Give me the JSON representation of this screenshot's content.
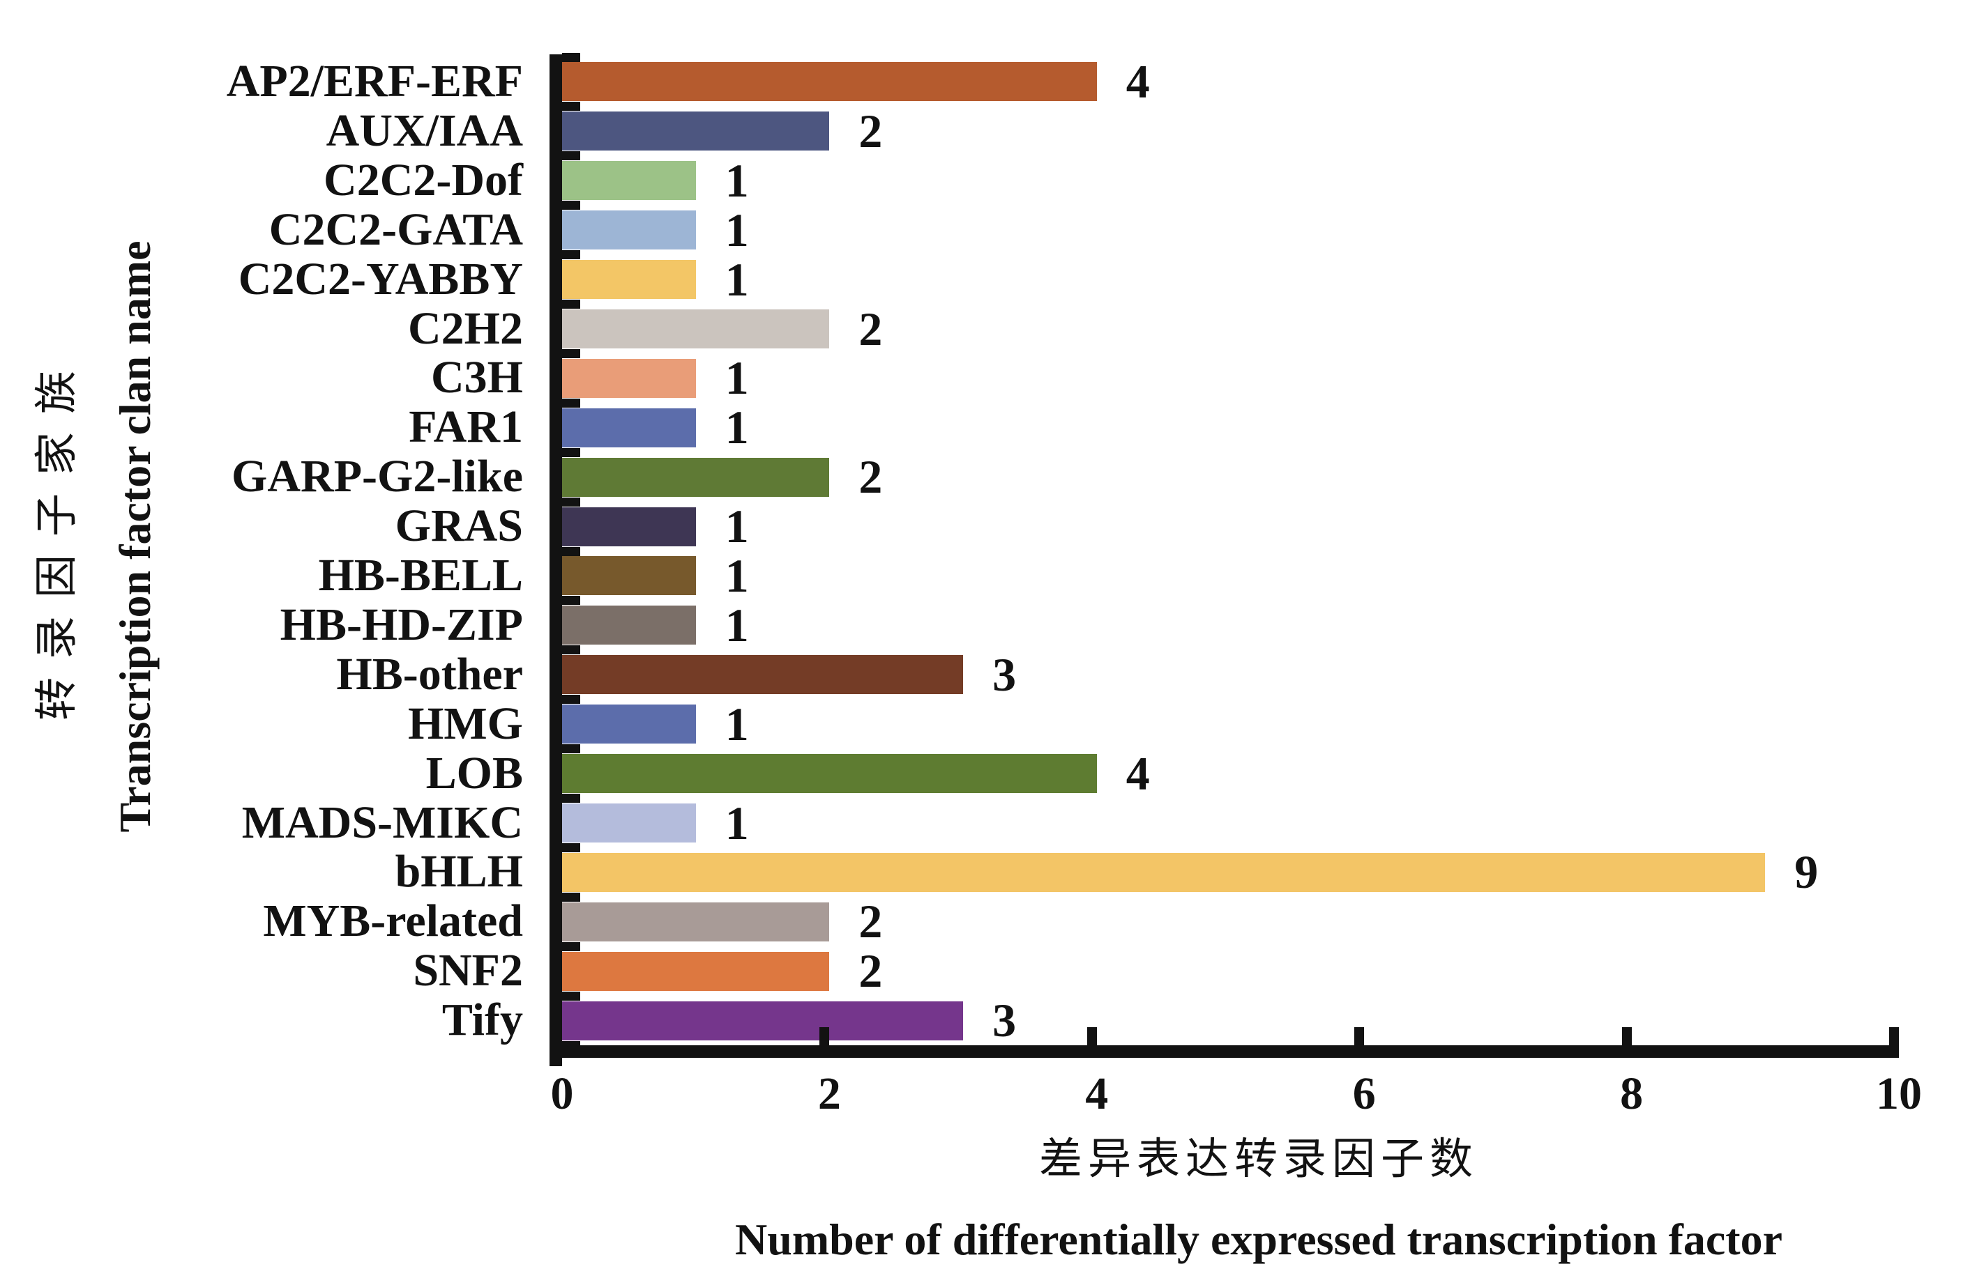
{
  "figure": {
    "background": "#ffffff",
    "axis_color": "#121212",
    "text_color": "#121212"
  },
  "chart_data": {
    "type": "bar",
    "orientation": "horizontal",
    "title": "",
    "xlabel_zh": "差异表达转录因子数",
    "xlabel_en": "Number of differentially expressed transcription factor",
    "ylabel_zh": "转录因子家族",
    "ylabel_en": "Transcription factor clan name",
    "categories": [
      "AP2/ERF-ERF",
      "AUX/IAA",
      "C2C2-Dof",
      "C2C2-GATA",
      "C2C2-YABBY",
      "C2H2",
      "C3H",
      "FAR1",
      "GARP-G2-like",
      "GRAS",
      "HB-BELL",
      "HB-HD-ZIP",
      "HB-other",
      "HMG",
      "LOB",
      "MADS-MIKC",
      "bHLH",
      "MYB-related",
      "SNF2",
      "Tify"
    ],
    "values": [
      4,
      2,
      1,
      1,
      1,
      2,
      1,
      1,
      2,
      1,
      1,
      1,
      3,
      1,
      4,
      1,
      9,
      2,
      2,
      3
    ],
    "bar_colors": [
      "#b55b2e",
      "#4d5680",
      "#9cc287",
      "#9db5d5",
      "#f3c666",
      "#cbc4be",
      "#e99d78",
      "#5c6dab",
      "#5f7a35",
      "#3e3654",
      "#77592c",
      "#7b6f68",
      "#743c26",
      "#5c6dab",
      "#5e7c31",
      "#b4bcdc",
      "#f3c566",
      "#a89b97",
      "#dd7840",
      "#75368c"
    ],
    "x_ticks": [
      "0",
      "2",
      "4",
      "6",
      "8",
      "10"
    ],
    "xlim": [
      0,
      10
    ],
    "grid": "off",
    "legend": "none"
  }
}
